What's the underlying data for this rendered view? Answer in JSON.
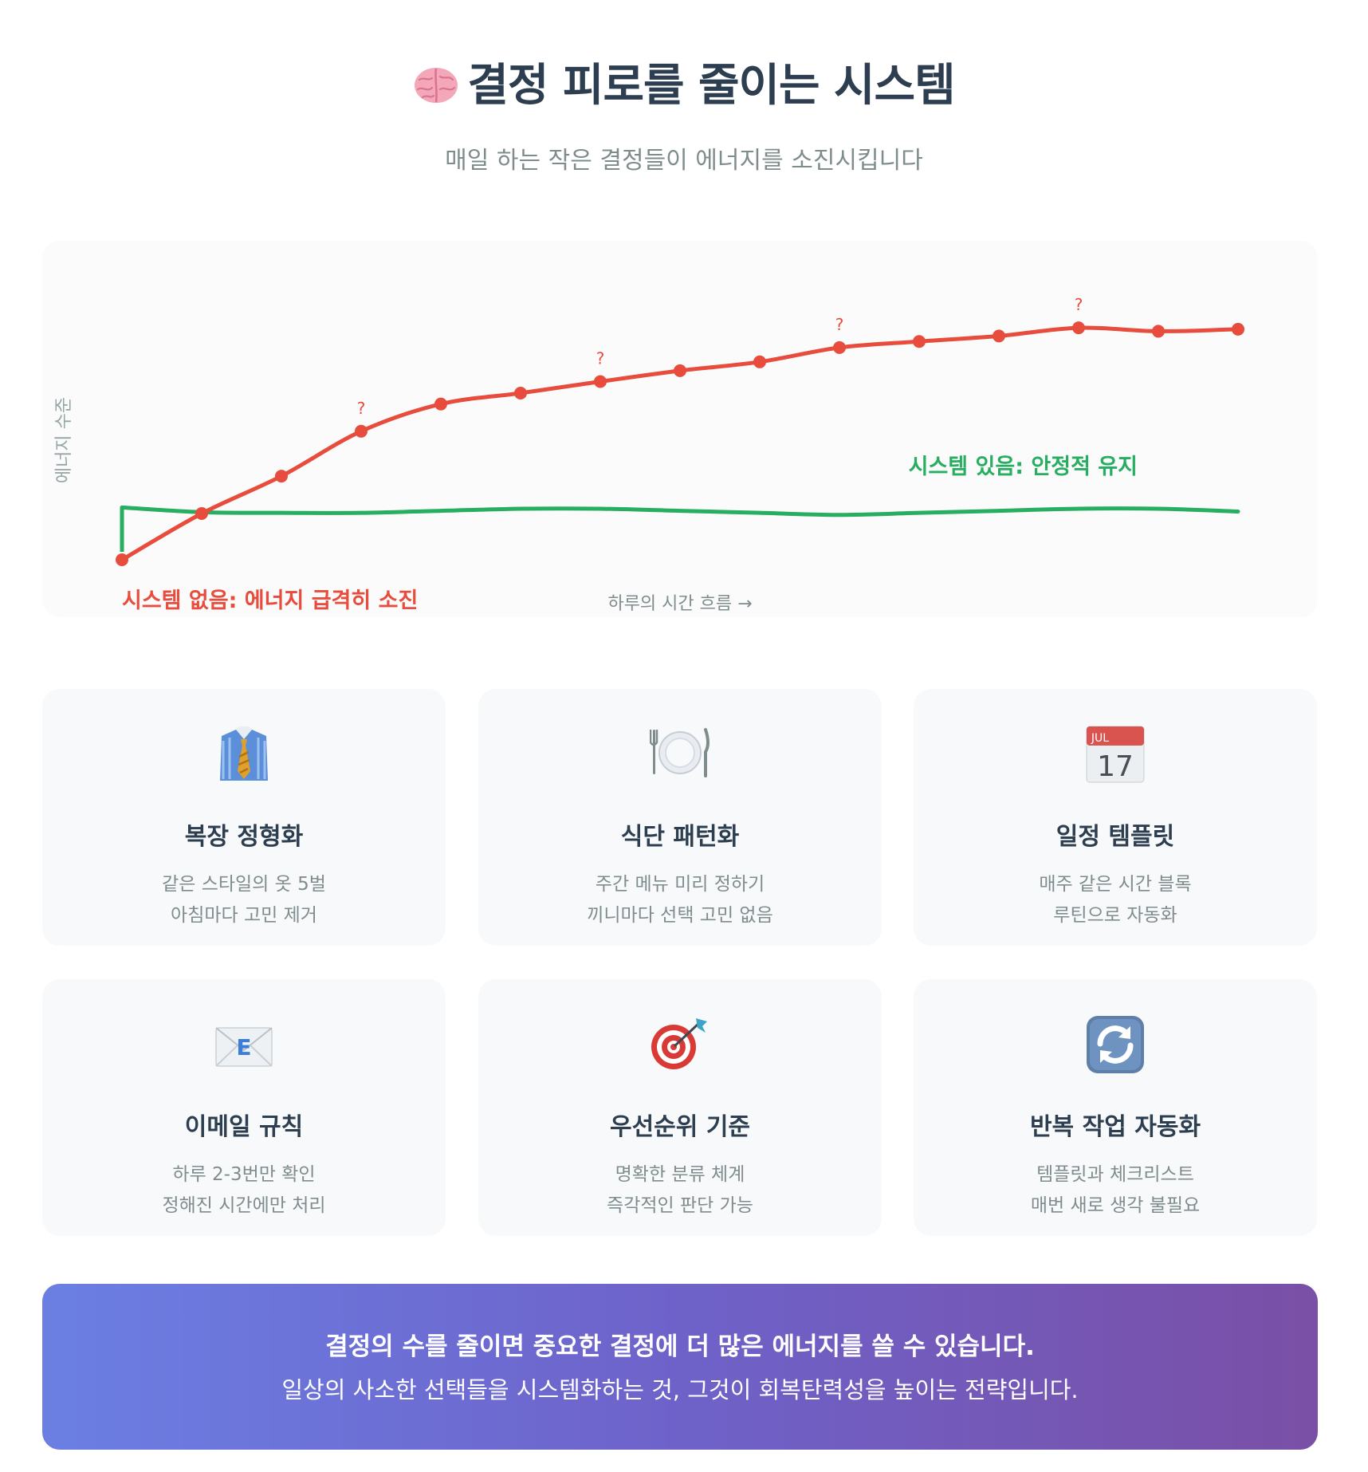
{
  "header": {
    "title": "결정 피로를 줄이는 시스템",
    "title_icon": "brain-icon",
    "subtitle": "매일 하는 작은 결정들이 에너지를 소진시킵니다"
  },
  "chart_data": {
    "type": "line",
    "title": "",
    "xlabel": "하루의 시간 흐름 →",
    "ylabel": "에너지 수준",
    "x": [
      0,
      1,
      2,
      3,
      4,
      5,
      6,
      7,
      8,
      9,
      10,
      11,
      12,
      13,
      14
    ],
    "series": [
      {
        "name": "시스템 없음: 에너지 급격히 소진",
        "color": "#e74c3c",
        "points": [
          0.0,
          0.68,
          1.23,
          1.89,
          2.29,
          2.45,
          2.62,
          2.78,
          2.91,
          3.12,
          3.21,
          3.29,
          3.41,
          3.36,
          3.39
        ],
        "question_marks_at": [
          3,
          6,
          9,
          12
        ]
      },
      {
        "name": "시스템 있음: 안정적 유지",
        "color": "#27ae60",
        "points": [
          0.77,
          0.7,
          0.69,
          0.69,
          0.72,
          0.75,
          0.75,
          0.72,
          0.69,
          0.66,
          0.69,
          0.72,
          0.75,
          0.75,
          0.71
        ]
      }
    ],
    "question_mark": "?",
    "legend": "inline labels",
    "grid": false
  },
  "cards": [
    {
      "icon": "necktie-shirt-icon",
      "title": "복장 정형화",
      "line1": "같은 스타일의 옷 5벌",
      "line2": "아침마다 고민 제거"
    },
    {
      "icon": "plate-cutlery-icon",
      "title": "식단 패턴화",
      "line1": "주간 메뉴 미리 정하기",
      "line2": "끼니마다 선택 고민 없음"
    },
    {
      "icon": "calendar-icon",
      "title": "일정 템플릿",
      "line1": "매주 같은 시간 블록",
      "line2": "루틴으로 자동화",
      "calendar_month": "JUL",
      "calendar_day": "17"
    },
    {
      "icon": "email-envelope-icon",
      "title": "이메일 규칙",
      "line1": "하루 2-3번만 확인",
      "line2": "정해진 시간에만 처리",
      "envelope_letter": "E"
    },
    {
      "icon": "target-dart-icon",
      "title": "우선순위 기준",
      "line1": "명확한 분류 체계",
      "line2": "즉각적인 판단 가능"
    },
    {
      "icon": "repeat-arrows-icon",
      "title": "반복 작업 자동화",
      "line1": "템플릿과 체크리스트",
      "line2": "매번 새로 생각 불필요"
    }
  ],
  "banner": {
    "line1": "결정의 수를 줄이면 중요한 결정에 더 많은 에너지를 쓸 수 있습니다.",
    "line2": "일상의 사소한 선택들을 시스템화하는 것, 그것이 회복탄력성을 높이는 전략입니다."
  },
  "colors": {
    "title": "#2c3e50",
    "muted": "#7f8c8d",
    "no_system": "#e74c3c",
    "with_system": "#27ae60",
    "banner_start": "#6b7fe3",
    "banner_end": "#7a4fa6"
  }
}
